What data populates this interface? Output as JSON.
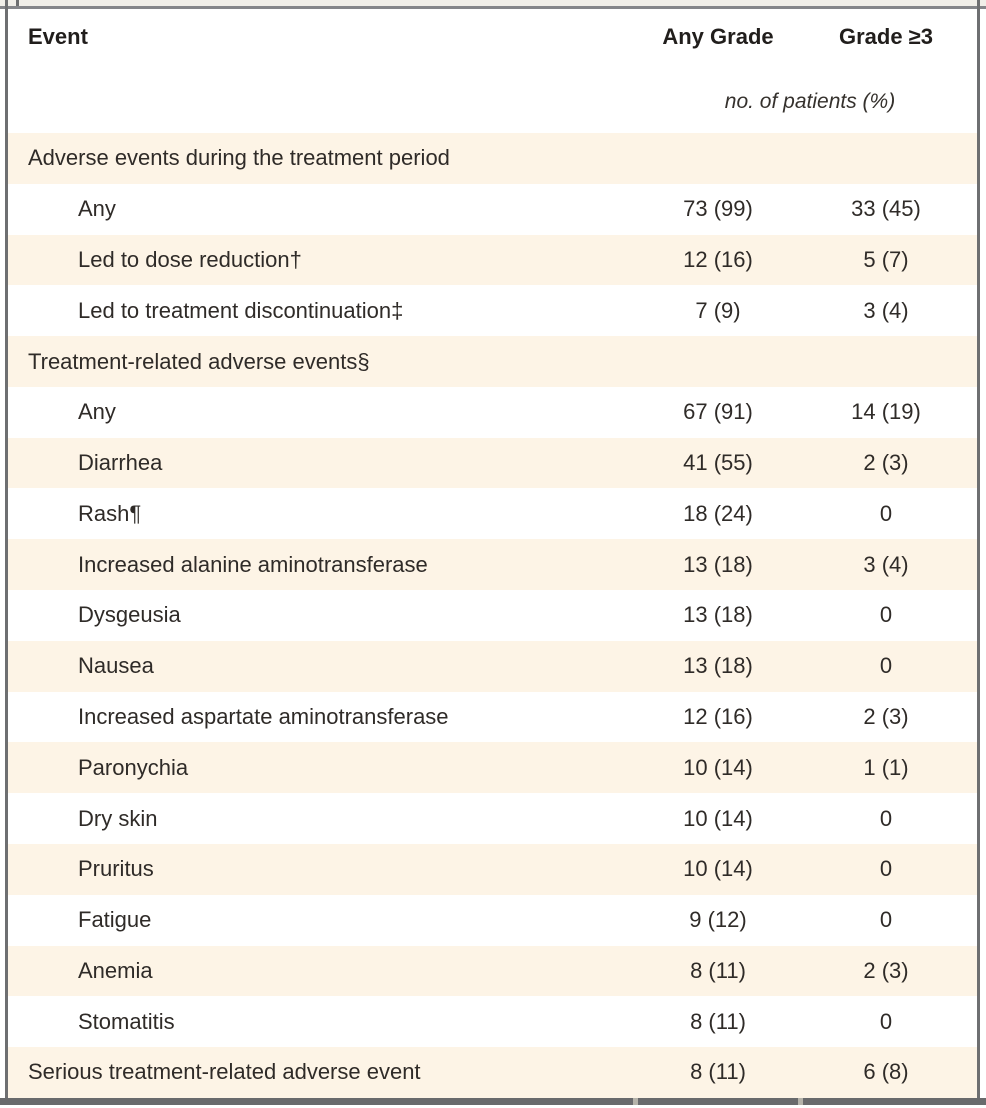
{
  "header": {
    "col_event": "Event",
    "col_any_grade": "Any Grade",
    "col_grade3": "Grade ≥3",
    "unit_note": "no. of patients (%)"
  },
  "rows": [
    {
      "label": "Adverse events during the treatment period",
      "indent": false,
      "any_grade": "",
      "grade3": ""
    },
    {
      "label": "Any",
      "indent": true,
      "any_grade": "73 (99)",
      "grade3": "33 (45)"
    },
    {
      "label": "Led to dose reduction†",
      "indent": true,
      "any_grade": "12 (16)",
      "grade3": "5 (7)"
    },
    {
      "label": "Led to treatment discontinuation‡",
      "indent": true,
      "any_grade": "7 (9)",
      "grade3": "3 (4)"
    },
    {
      "label": "Treatment-related adverse events§",
      "indent": false,
      "any_grade": "",
      "grade3": ""
    },
    {
      "label": "Any",
      "indent": true,
      "any_grade": "67 (91)",
      "grade3": "14 (19)"
    },
    {
      "label": "Diarrhea",
      "indent": true,
      "any_grade": "41 (55)",
      "grade3": "2 (3)"
    },
    {
      "label": "Rash¶",
      "indent": true,
      "any_grade": "18 (24)",
      "grade3": "0"
    },
    {
      "label": "Increased alanine aminotransferase",
      "indent": true,
      "any_grade": "13 (18)",
      "grade3": "3 (4)"
    },
    {
      "label": "Dysgeusia",
      "indent": true,
      "any_grade": "13 (18)",
      "grade3": "0"
    },
    {
      "label": "Nausea",
      "indent": true,
      "any_grade": "13 (18)",
      "grade3": "0"
    },
    {
      "label": "Increased aspartate aminotransferase",
      "indent": true,
      "any_grade": "12 (16)",
      "grade3": "2 (3)"
    },
    {
      "label": "Paronychia",
      "indent": true,
      "any_grade": "10 (14)",
      "grade3": "1 (1)"
    },
    {
      "label": "Dry skin",
      "indent": true,
      "any_grade": "10 (14)",
      "grade3": "0"
    },
    {
      "label": "Pruritus",
      "indent": true,
      "any_grade": "10 (14)",
      "grade3": "0"
    },
    {
      "label": "Fatigue",
      "indent": true,
      "any_grade": "9 (12)",
      "grade3": "0"
    },
    {
      "label": "Anemia",
      "indent": true,
      "any_grade": "8 (11)",
      "grade3": "2 (3)"
    },
    {
      "label": "Stomatitis",
      "indent": true,
      "any_grade": "8 (11)",
      "grade3": "0"
    },
    {
      "label": "Serious treatment-related adverse event",
      "indent": false,
      "any_grade": "8 (11)",
      "grade3": "6 (8)"
    }
  ],
  "colors": {
    "row_tint": "#fdf4e6",
    "border_gray": "#6e6f71",
    "top_rule_gray": "#85868a",
    "bottom_bar_gray": "#696a6c",
    "text": "#2f2b28"
  }
}
